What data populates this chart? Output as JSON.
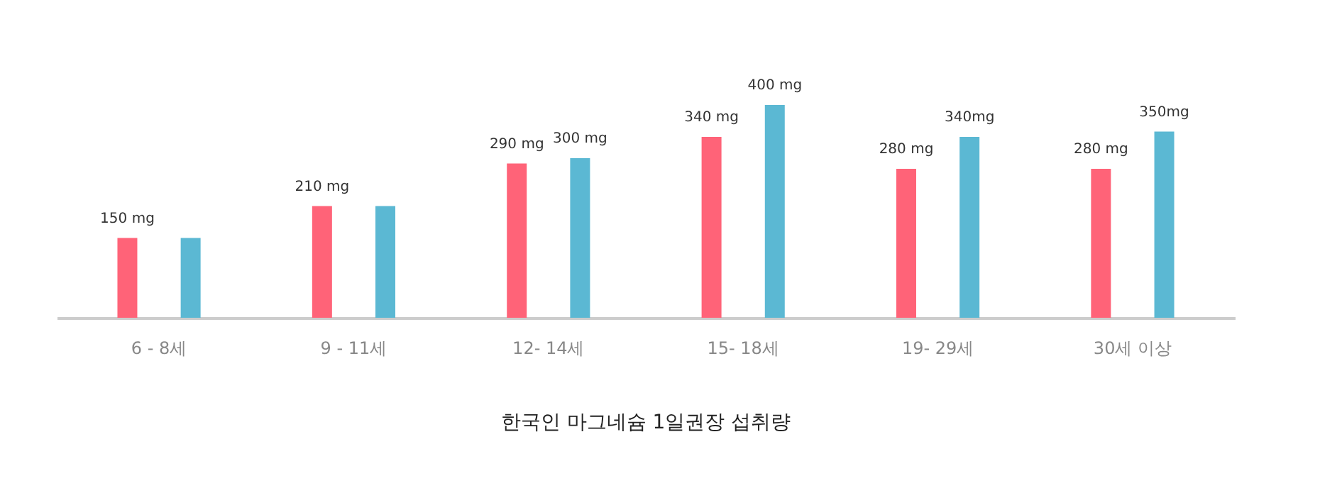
{
  "chart_data": {
    "type": "bar",
    "title": "한국인 마그네슘 1일권장 섭취량",
    "categories": [
      "6 - 8세",
      "9 - 11세",
      "12- 14세",
      "15- 18세",
      "19- 29세",
      "30세 이상"
    ],
    "series": [
      {
        "color": "#ff6378",
        "values": [
          150,
          210,
          290,
          340,
          280,
          280
        ],
        "value_labels": [
          "150 mg",
          "210 mg",
          "290 mg",
          "340 mg",
          "280 mg",
          "280 mg"
        ]
      },
      {
        "color": "#5bb8d3",
        "values": [
          150,
          210,
          300,
          400,
          340,
          350
        ],
        "value_labels": [
          null,
          null,
          "300 mg",
          "400 mg",
          "340mg",
          "350mg"
        ]
      }
    ],
    "grid": false,
    "legend": false
  }
}
